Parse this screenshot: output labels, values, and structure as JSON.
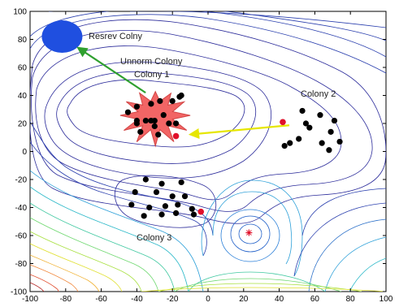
{
  "chart_data": {
    "type": "contour",
    "xlim": [
      -100,
      100
    ],
    "ylim": [
      -100,
      100
    ],
    "x_ticks": [
      "-100",
      "-80",
      "-60",
      "-40",
      "-20",
      "0",
      "20",
      "40",
      "60",
      "80",
      "100"
    ],
    "y_ticks": [
      "100",
      "80",
      "60",
      "40",
      "20",
      "0",
      "-20",
      "-40",
      "-60",
      "-80",
      "-100"
    ],
    "labels": {
      "reserve": "Resrev Colny",
      "unnorm_line1": "Unnorm Colony",
      "unnorm_line2": "Colony 1",
      "colony2": "Colony 2",
      "colony3": "Colony 3"
    },
    "reserve_colony": {
      "x": -82,
      "y": 82,
      "color": "#1f4fe0"
    },
    "global_minimum": {
      "x": 23,
      "y": -58
    },
    "colony1_points": [
      [
        -45,
        28
      ],
      [
        -40,
        32
      ],
      [
        -32,
        34
      ],
      [
        -27,
        36
      ],
      [
        -40,
        20
      ],
      [
        -35,
        22
      ],
      [
        -30,
        22
      ],
      [
        -25,
        26
      ],
      [
        -38,
        14
      ],
      [
        -28,
        12
      ],
      [
        -22,
        20
      ],
      [
        -18,
        20
      ],
      [
        -20,
        36
      ],
      [
        -16,
        39
      ],
      [
        -15,
        40
      ],
      [
        -32,
        22
      ],
      [
        -40,
        22
      ],
      [
        -30,
        18
      ]
    ],
    "colony1_best": {
      "x": -18,
      "y": 11
    },
    "colony2_points": [
      [
        53,
        29
      ],
      [
        55,
        20
      ],
      [
        63,
        26
      ],
      [
        69,
        14
      ],
      [
        71,
        22
      ],
      [
        57,
        17
      ],
      [
        51,
        9
      ],
      [
        46,
        6
      ],
      [
        43,
        4
      ],
      [
        64,
        6
      ],
      [
        74,
        7
      ],
      [
        68,
        1
      ]
    ],
    "colony2_best": {
      "x": 42,
      "y": 21
    },
    "colony3_points": [
      [
        -35,
        -20
      ],
      [
        -26,
        -23
      ],
      [
        -15,
        -22
      ],
      [
        -41,
        -29
      ],
      [
        -29,
        -29
      ],
      [
        -20,
        -32
      ],
      [
        -13,
        -32
      ],
      [
        -43,
        -38
      ],
      [
        -33,
        -40
      ],
      [
        -24,
        -39
      ],
      [
        -17,
        -38
      ],
      [
        -9,
        -41
      ],
      [
        -36,
        -46
      ],
      [
        -26,
        -45
      ],
      [
        -18,
        -44
      ],
      [
        -8,
        -45
      ]
    ],
    "colony3_best": {
      "x": -4,
      "y": -43
    },
    "colors": {
      "colony_point": "#000000",
      "best_point": "#e0102a",
      "green_arrow": "#2fa02f",
      "yellow_arrow": "#e6e600",
      "burst": "#f25d5d",
      "burst_stroke": "#d03c3c"
    }
  }
}
